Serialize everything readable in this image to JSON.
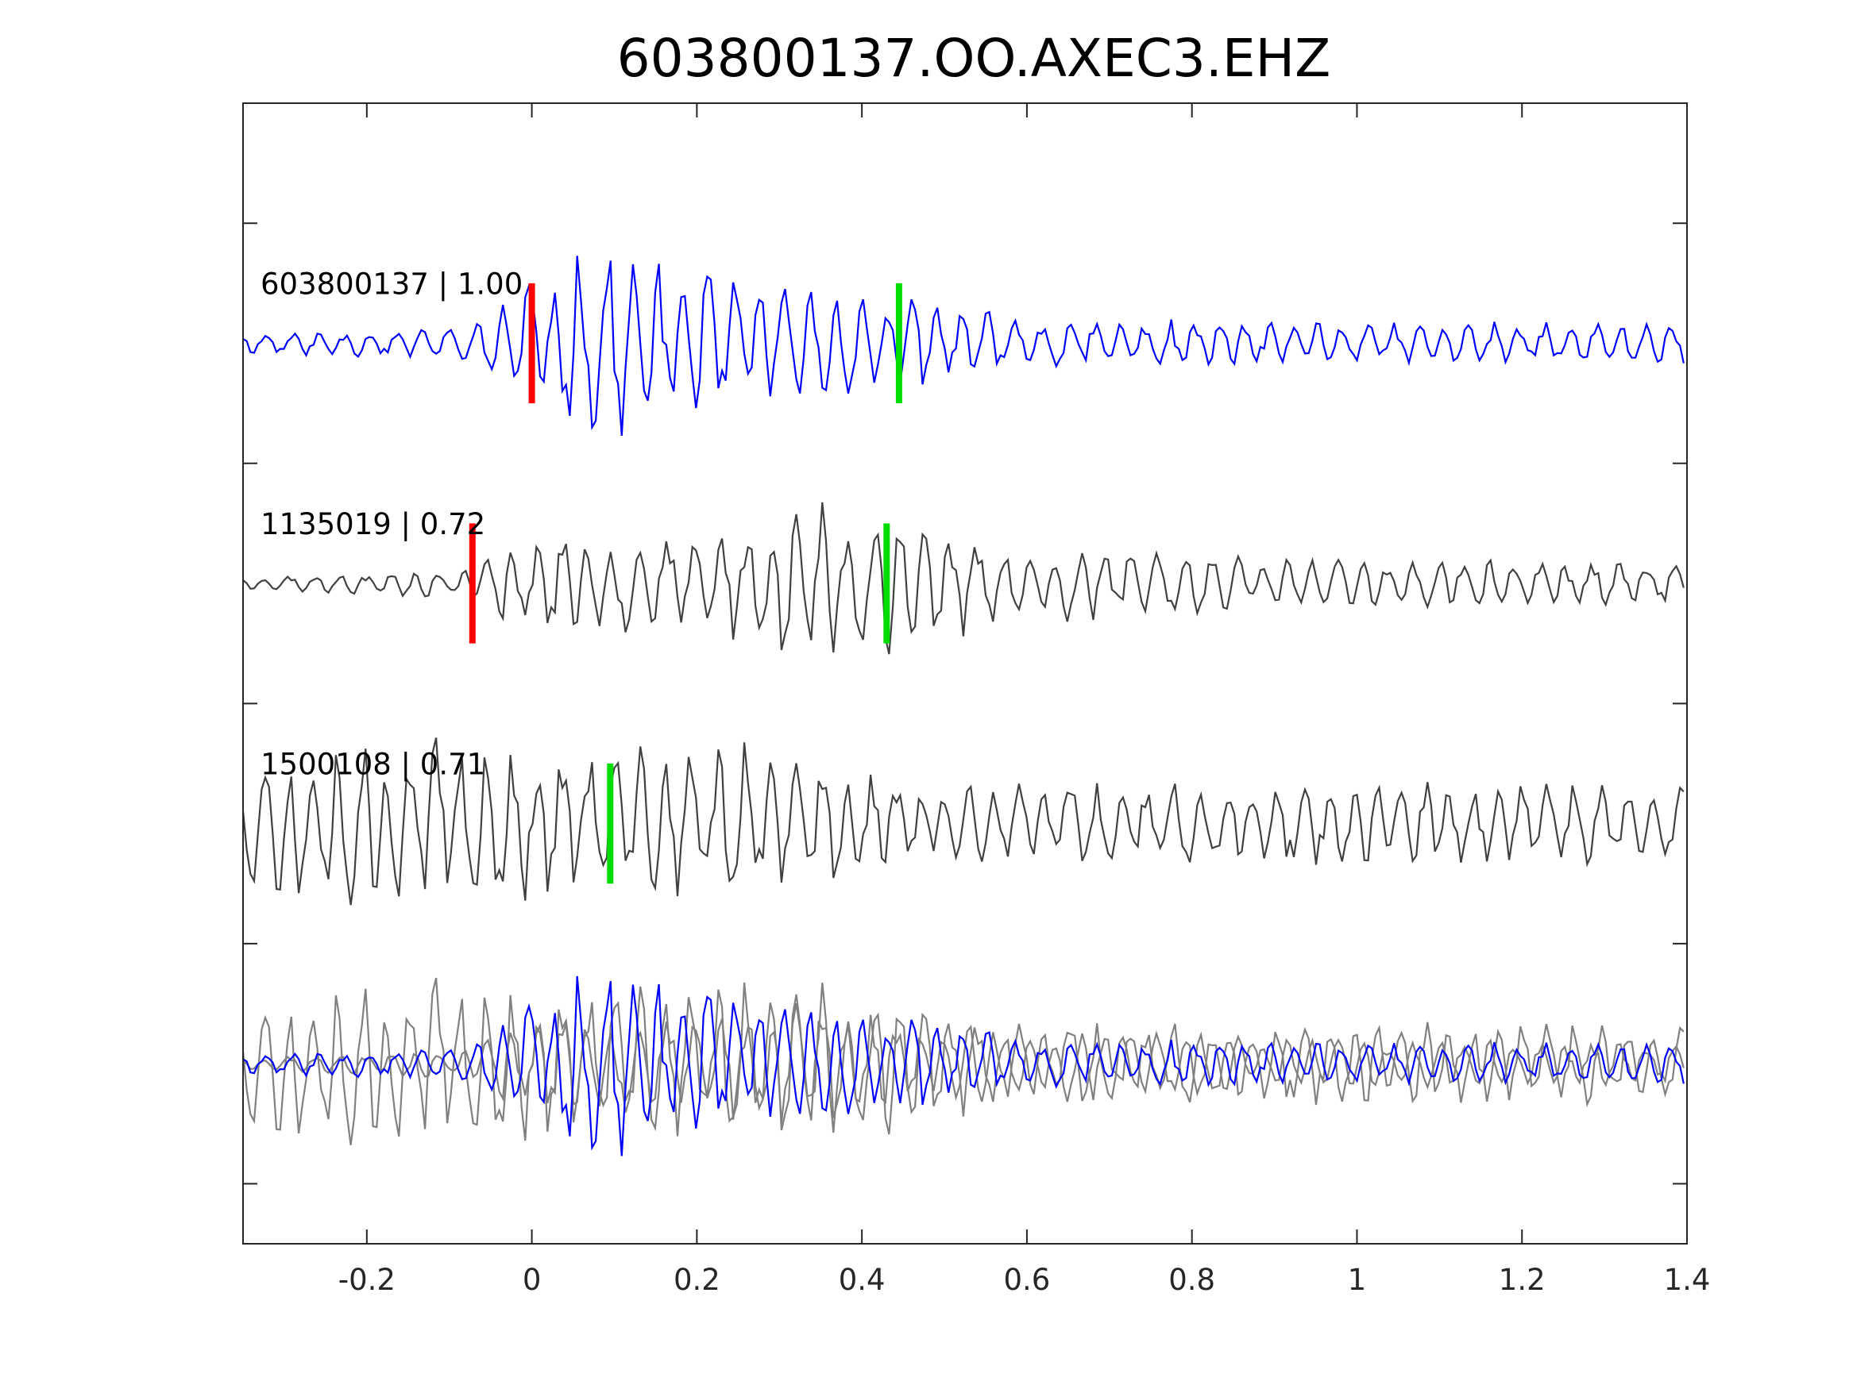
{
  "chart_data": {
    "type": "line",
    "title": "603800137.OO.AXEC3.EHZ",
    "xlabel": "",
    "ylabel": "",
    "xlim": [
      -0.35,
      1.4
    ],
    "ylim": [
      0,
      4.75
    ],
    "x_ticks": [
      -0.2,
      0,
      0.2,
      0.4,
      0.6,
      0.8,
      1,
      1.2,
      1.4
    ],
    "x_tick_labels": [
      "-0.2",
      "0",
      "0.2",
      "0.4",
      "0.6",
      "0.8",
      "1",
      "1.2",
      "1.4"
    ],
    "y_ticks": [
      0.25,
      1.25,
      2.25,
      3.25,
      4.25
    ],
    "grid": false,
    "legend": "none",
    "colors": {
      "template": "#0000ff",
      "matched": "#404040",
      "stacked_matched": "#808080",
      "p_pick": "#ff0000",
      "s_pick": "#00dd00",
      "axes": "#262626"
    },
    "series": [
      {
        "label": "603800137 | 1.00",
        "offset": 3.75,
        "color": "#0000ff",
        "p_pick": 0.0,
        "s_pick": 0.445,
        "envelope": [
          [
            -0.35,
            0.05
          ],
          [
            -0.07,
            0.08
          ],
          [
            0.0,
            0.4
          ],
          [
            0.07,
            0.5
          ],
          [
            0.3,
            0.28
          ],
          [
            0.5,
            0.22
          ],
          [
            0.6,
            0.12
          ],
          [
            1.4,
            0.1
          ]
        ],
        "period": 0.031,
        "noise_seed": 11
      },
      {
        "label": "1135019 | 0.72",
        "offset": 2.75,
        "color": "#404040",
        "p_pick": -0.072,
        "s_pick": 0.43,
        "envelope": [
          [
            -0.35,
            0.03
          ],
          [
            -0.07,
            0.08
          ],
          [
            -0.04,
            0.25
          ],
          [
            0.1,
            0.25
          ],
          [
            0.2,
            0.2
          ],
          [
            0.27,
            0.35
          ],
          [
            0.33,
            0.45
          ],
          [
            0.48,
            0.32
          ],
          [
            0.58,
            0.2
          ],
          [
            0.9,
            0.13
          ],
          [
            1.4,
            0.1
          ]
        ],
        "period": 0.031,
        "noise_seed": 23
      },
      {
        "label": "1500108 | 0.71",
        "offset": 1.75,
        "color": "#404040",
        "p_pick": null,
        "s_pick": 0.095,
        "envelope": [
          [
            -0.35,
            0.35
          ],
          [
            -0.15,
            0.45
          ],
          [
            0.05,
            0.35
          ],
          [
            0.2,
            0.42
          ],
          [
            0.28,
            0.38
          ],
          [
            0.45,
            0.2
          ],
          [
            1.0,
            0.2
          ],
          [
            1.4,
            0.2
          ]
        ],
        "period": 0.031,
        "noise_seed": 37
      }
    ],
    "stack_offset": 0.75
  }
}
